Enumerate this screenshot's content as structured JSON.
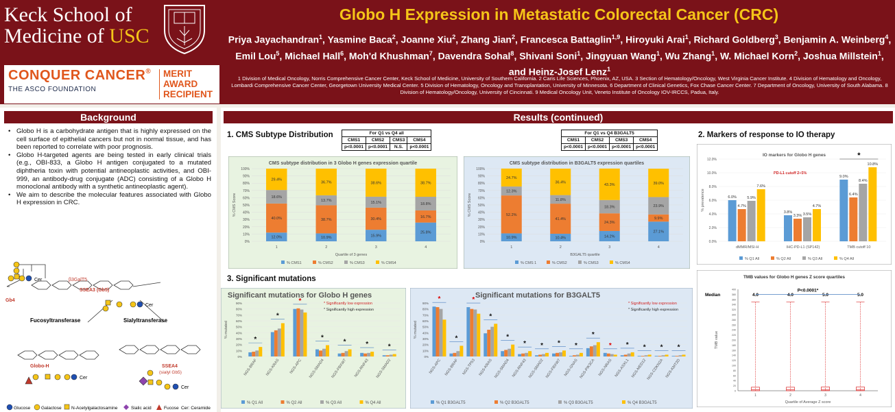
{
  "header": {
    "logo_line1": "Keck School of",
    "logo_line2_a": "Medicine of ",
    "logo_line2_b": "USC",
    "conquer": "CONQUER CANCER",
    "reg": "®",
    "asco": "THE ASCO FOUNDATION",
    "merit": [
      "MERIT",
      "AWARD",
      "RECIPIENT"
    ],
    "title": "Globo H Expression in Metastatic Colorectal Cancer (CRC)",
    "authors": [
      {
        "name": "Priya Jayachandran",
        "sup": "1"
      },
      {
        "name": "Yasmine Baca",
        "sup": "2"
      },
      {
        "name": "Joanne Xiu",
        "sup": "2"
      },
      {
        "name": "Zhang Jian",
        "sup": "2"
      },
      {
        "name": "Francesca Battaglin",
        "sup": "1,9"
      },
      {
        "name": "Hiroyuki Arai",
        "sup": "1"
      },
      {
        "name": "Richard Goldberg",
        "sup": "3"
      },
      {
        "name": "Benjamin A. Weinberg",
        "sup": "4"
      },
      {
        "name": "Emil Lou",
        "sup": "5"
      },
      {
        "name": "Michael Hall",
        "sup": "6"
      },
      {
        "name": "Moh'd Khushman",
        "sup": "7"
      },
      {
        "name": "Davendra Sohal",
        "sup": "8"
      },
      {
        "name": "Shivani Soni",
        "sup": "1"
      },
      {
        "name": "Jingyuan Wang",
        "sup": "1"
      },
      {
        "name": "Wu Zhang",
        "sup": "1"
      },
      {
        "name": "W. Michael Korn",
        "sup": "2"
      },
      {
        "name": "Joshua Millstein",
        "sup": "1"
      },
      {
        "name": "Heinz-Josef Lenz",
        "sup": "1"
      }
    ],
    "affiliations": "1 Division of Medical Oncology, Norris Comprehensive Cancer Center, Keck School of Medicine, University of Southern California. 2 Caris Life Sciences, Phoenix, AZ, USA. 3 Section of Hematology/Oncology, West Virginia Cancer Institute. 4 Division of Hematology and Oncology, Lombardi Comprehensive Cancer Center, Georgetown University Medical Center. 5 Division of Hematology, Oncology and Transplantation, University of Minnesota. 6 Department of Clinical Genetics, Fox Chase Cancer Center. 7 Department of Oncology, University of South Alabama. 8 Division of Hematology/Oncology, University of Cincinnati. 9 Medical Oncology Unit, Veneto Institute of Oncology IOV-IRCCS, Padua, Italy."
  },
  "background": {
    "heading": "Background",
    "bullets": [
      "Globo H is a carbohydrate antigen that is highly expressed on the cell surface of epithelial cancers but not in normal tissue, and has been reported to correlate with poor prognosis.",
      "Globo H-targeted agents are being tested in early clinical trials (e.g., OBI-833, a Globo H antigen conjugated to a mutated diphtheria toxin with potential antineoplastic activities, and OBI-999, an antibody-drug conjugate (ADC) consisting of a Globo H monoclonal antibody with a synthetic antineoplastic agent).",
      "We aim to describe the molecular features associated with Globo H expression in CRC."
    ],
    "diagram": {
      "b3galt5": "β3GalT5",
      "ssea3": "SSEA3 (Gb5)",
      "gb4": "Gb4",
      "cer": "Cer",
      "fucosyl": "Fucosyltransferase",
      "sialyl": "Sialyltransferase",
      "globoh": "Globo-H",
      "ssea4": "SSEA4",
      "ssea4b": "(sialyl Gb5)",
      "beta": "β",
      "alpha": "α",
      "legend": [
        "Glucose",
        "Galactose",
        "N-Acetylgalactosamine",
        "Sialic acid",
        "Fucose",
        "Cer: Ceramide"
      ]
    }
  },
  "results": {
    "heading": "Results (continued)",
    "s1": "1. CMS Subtype Distribution",
    "s2": "2. Markers of response to IO therapy",
    "s3": "3. Significant mutations",
    "t1_title": "For Q1 vs Q4 all",
    "t1_heads": [
      "CMS1",
      "CMS2",
      "CMS3",
      "CMS4"
    ],
    "t1_vals": [
      "p<0.0001",
      "p<0.0001",
      "N.S.",
      "p<0.0001"
    ],
    "t2_title": "For Q1 vs Q4 B3GALT5",
    "t2_heads": [
      "CMS1",
      "CMS2",
      "CMS3",
      "CMS4"
    ],
    "t2_vals": [
      "p<0.0001",
      "p<0.0001",
      "p<0.0001",
      "p<0.0001"
    ]
  },
  "colors": {
    "maroon": "#7a1219",
    "gold": "#f5c518",
    "blue": "#5b9bd5",
    "orange": "#ed7d31",
    "gray": "#a5a5a5",
    "yellow": "#ffc000"
  },
  "chart_data": [
    {
      "type": "bar",
      "stacked": true,
      "title": "CMS subtype distribution in 3 Globo H genes expression quartile",
      "xlabel": "Quartile of 3 genes",
      "ylabel": "% CMS Score",
      "categories": [
        "1",
        "2",
        "3",
        "4"
      ],
      "yticks": [
        "0%",
        "10%",
        "20%",
        "30%",
        "40%",
        "50%",
        "60%",
        "70%",
        "80%",
        "90%",
        "100%"
      ],
      "series": [
        {
          "name": "% CMS1",
          "values": [
            12.0,
            10.9,
            15.9,
            25.8
          ],
          "labels": [
            "12.0%",
            "10.9%",
            "15.9%",
            "25.8%"
          ]
        },
        {
          "name": "% CMS2",
          "values": [
            40.0,
            38.7,
            30.4,
            16.7
          ],
          "labels": [
            "40.0%",
            "38.7%",
            "30.4%",
            "16.7%"
          ]
        },
        {
          "name": "% CMS3",
          "values": [
            18.6,
            13.7,
            15.1,
            18.8
          ],
          "labels": [
            "18.6%",
            "13.7%",
            "15.1%",
            "18.8%"
          ]
        },
        {
          "name": "% CMS4",
          "values": [
            29.4,
            36.7,
            38.6,
            38.7
          ],
          "labels": [
            "29.4%",
            "36.7%",
            "38.6%",
            "38.7%"
          ]
        }
      ]
    },
    {
      "type": "bar",
      "stacked": true,
      "title": "CMS subtype distribution in B3GALT5 expression quartiles",
      "xlabel": "B3GALT5 quartile",
      "ylabel": "% CMS Score",
      "categories": [
        "1",
        "2",
        "3",
        "4"
      ],
      "yticks": [
        "0%",
        "10%",
        "20%",
        "30%",
        "40%",
        "50%",
        "60%",
        "70%",
        "80%",
        "90%",
        "100%"
      ],
      "series": [
        {
          "name": "% CMS 1",
          "values": [
            10.9,
            10.4,
            14.2,
            27.1
          ],
          "labels": [
            "10.9%",
            "10.4%",
            "14.2%",
            "27.1%"
          ]
        },
        {
          "name": "% CMS2",
          "values": [
            52.2,
            41.4,
            24.3,
            9.9
          ],
          "labels": [
            "52.2%",
            "41.4%",
            "24.3%",
            "9.9%"
          ]
        },
        {
          "name": "% CMS3",
          "values": [
            12.3,
            11.8,
            18.3,
            23.9
          ],
          "labels": [
            "12.3%",
            "11.8%",
            "18.3%",
            "23.9%"
          ]
        },
        {
          "name": "% CMS4",
          "values": [
            24.7,
            36.4,
            43.3,
            39.0
          ],
          "labels": [
            "24.7%",
            "36.4%",
            "43.3%",
            "39.0%"
          ]
        }
      ]
    },
    {
      "type": "bar",
      "title": "IO markers for Globo H genes",
      "annotation": "PD-L1 cutoff 2+5%",
      "ylabel": "% prevalence",
      "categories": [
        "dMMR/MSI-H",
        "IHC-PD-L1 (SP142)",
        "TMB cutoff 10"
      ],
      "yticks": [
        "0.0%",
        "2.0%",
        "4.0%",
        "6.0%",
        "8.0%",
        "10.0%",
        "12.0%"
      ],
      "ylim": [
        0,
        12
      ],
      "series": [
        {
          "name": "% Q1 All",
          "values": [
            6.0,
            3.8,
            9.0
          ],
          "labels": [
            "6.0%",
            "3.8%",
            "9.0%"
          ]
        },
        {
          "name": "% Q2 All",
          "values": [
            4.7,
            3.3,
            6.4
          ],
          "labels": [
            "4.7%",
            "3.3%",
            "6.4%"
          ]
        },
        {
          "name": "% Q3 All",
          "values": [
            5.9,
            3.5,
            8.4
          ],
          "labels": [
            "5.9%",
            "3.5%",
            "8.4%"
          ]
        },
        {
          "name": "% Q4 All",
          "values": [
            7.6,
            4.7,
            10.8
          ],
          "labels": [
            "7.6%",
            "4.7%",
            "10.8%"
          ]
        }
      ],
      "significance": [
        "",
        "",
        "*"
      ]
    },
    {
      "type": "box",
      "title": "TMB values for Globo H genes Z score quartiles",
      "xlabel": "Quartile of Average Z score",
      "ylabel": "TMB value",
      "median_label": "Median",
      "categories": [
        "1",
        "2",
        "3",
        "4"
      ],
      "medians": [
        4.0,
        4.0,
        5.0,
        5.0
      ],
      "median_labels": [
        "4.0",
        "4.0",
        "5.0",
        "5.0"
      ],
      "yticks": [
        "0",
        "20",
        "40",
        "60",
        "80",
        "100",
        "120",
        "140",
        "160",
        "180",
        "200",
        "220",
        "240",
        "260",
        "280",
        "300",
        "320",
        "340",
        "360",
        "380",
        "400"
      ],
      "pvalue": "P<0.0001*"
    },
    {
      "type": "bar",
      "title": "Significant mutations for Globo H genes",
      "ylabel": "% mutated",
      "categories": [
        "NGS-BRAF",
        "NGS-KRAS",
        "NGS-APC",
        "NGS-SMAD4",
        "NGS-FBXW7",
        "NGS-RNF43",
        "NGS-SMAD2"
      ],
      "yticks": [
        "0%",
        "10%",
        "20%",
        "30%",
        "40%",
        "50%",
        "60%",
        "70%",
        "80%",
        "90%"
      ],
      "ylim": [
        0,
        90
      ],
      "series": [
        {
          "name": "% Q1 All",
          "values": [
            7,
            41,
            80,
            12,
            5,
            6,
            2
          ]
        },
        {
          "name": "% Q2 All",
          "values": [
            8,
            44,
            81,
            10,
            6,
            5,
            2
          ]
        },
        {
          "name": "% Q3 All",
          "values": [
            10,
            47,
            79,
            13,
            9,
            6,
            3
          ]
        },
        {
          "name": "% Q4 All",
          "values": [
            16,
            56,
            74,
            19,
            12,
            8,
            4
          ]
        }
      ],
      "significance": [
        "*",
        "*",
        "*",
        "*",
        "*",
        "*",
        "*"
      ],
      "significance_type": [
        "high",
        "high",
        "low",
        "high",
        "high",
        "high",
        "high"
      ],
      "legend_notes": [
        "* Significantly low expression",
        "* Significantly high expression"
      ]
    },
    {
      "type": "bar",
      "title": "Significant mutations for B3GALT5",
      "ylabel": "% mutated",
      "categories": [
        "NGS-APC",
        "NGS-BRAF",
        "NGS-TP53",
        "NGS-KRAS",
        "NGS-SMAD4",
        "NGS-RNF43",
        "NGS-SMAD2",
        "NGS-FBXW7",
        "NGS-GNAS",
        "NGS-PIK3CA",
        "NGS-NRAS",
        "NGS-ASXL1",
        "NGS-MED12",
        "NGS-CDKN2A",
        "NGS-KMT2D"
      ],
      "yticks": [
        "0%",
        "10%",
        "20%",
        "30%",
        "40%",
        "50%",
        "60%",
        "70%",
        "80%",
        "90%"
      ],
      "ylim": [
        0,
        90
      ],
      "series": [
        {
          "name": "% Q1 B3GALT5",
          "values": [
            84,
            5,
            83,
            39,
            9,
            4,
            2,
            5,
            1,
            14,
            6,
            2,
            1,
            1,
            1
          ]
        },
        {
          "name": "% Q2 B3GALT5",
          "values": [
            83,
            6,
            80,
            45,
            11,
            5,
            3,
            6,
            2,
            17,
            5,
            3,
            1,
            1,
            1
          ]
        },
        {
          "name": "% Q3 B3GALT5",
          "values": [
            80,
            9,
            79,
            50,
            13,
            6,
            4,
            7,
            3,
            19,
            4,
            5,
            2,
            2,
            2
          ]
        },
        {
          "name": "% Q4 B3GALT5",
          "values": [
            62,
            18,
            72,
            55,
            20,
            9,
            6,
            10,
            6,
            24,
            3,
            7,
            3,
            3,
            3
          ]
        }
      ],
      "significance_type": [
        "low",
        "high",
        "low",
        "high",
        "high",
        "high",
        "high",
        "high",
        "high",
        "high",
        "low",
        "high",
        "high",
        "high",
        "high"
      ],
      "legend_notes": [
        "* Significantly low expression",
        "* Significantly high expression"
      ]
    }
  ]
}
